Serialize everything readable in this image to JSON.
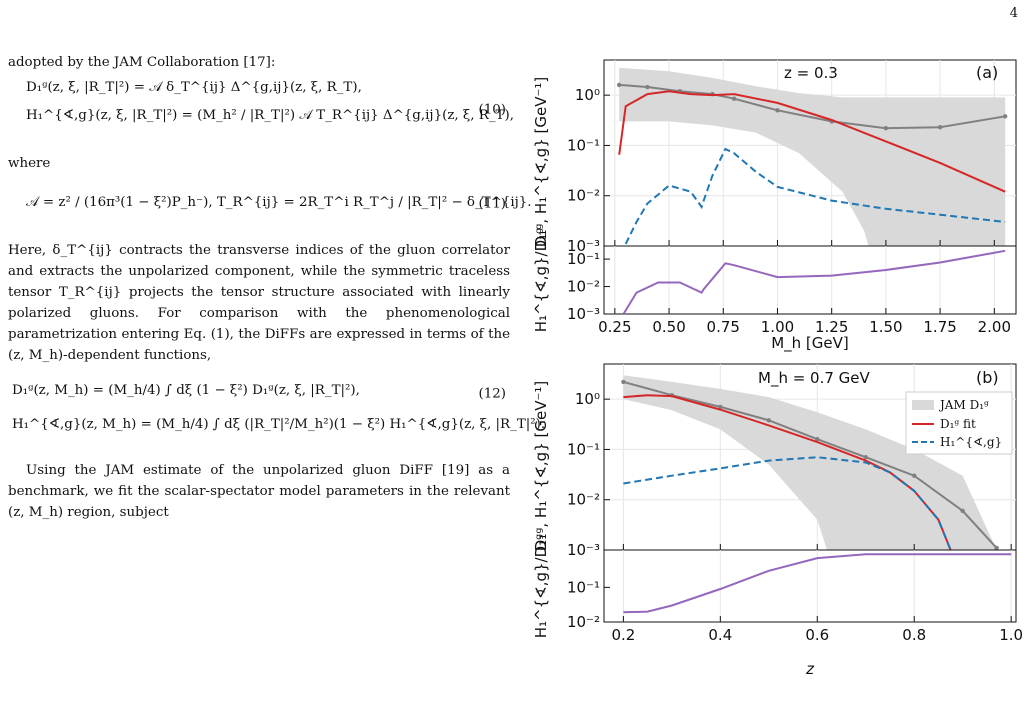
{
  "page_number": "4",
  "text": {
    "intro": "adopted by the JAM Collaboration [17]:",
    "eq10_line1": "D₁ᵍ(z, ξ, |R_T|²) = 𝒜 δ_T^{ij} Δ^{g,ij}(z, ξ, R_T),",
    "eq10_line2": "H₁^{∢,g}(z, ξ, |R_T|²) = (M_h² / |R_T|²) 𝒜 T_R^{ij} Δ^{g,ij}(z, ξ, R_T),",
    "eq10_num": "(10)",
    "where": "where",
    "eq11": "𝒜 = z² / (16π³(1 − ξ²)P_h⁻),     T_R^{ij} = 2R_T^i R_T^j / |R_T|² − δ_T^{ij}.",
    "eq11_num": "(11)",
    "para1": "Here, δ_T^{ij} contracts the transverse indices of the gluon correlator and extracts the unpolarized component, while the symmetric traceless tensor T_R^{ij} projects the tensor structure associated with linearly polarized gluons. For comparison with the phenomenological parametrization entering Eq. (1), the DiFFs are expressed in terms of the (z, M_h)-dependent functions,",
    "eq12_line1": "D₁ᵍ(z, M_h) = (M_h/4) ∫ dξ (1 − ξ²) D₁ᵍ(z, ξ, |R_T|²),",
    "eq12_num": "(12)",
    "eq12_line2": "H₁^{∢,g}(z, M_h) = (M_h/4) ∫ dξ (|R_T|²/M_h²)(1 − ξ²) H₁^{∢,g}(z, ξ, |R_T|²).",
    "para2": "Using the JAM estimate of the unpolarized gluon DiFF [19] as a benchmark, we fit the scalar-spectator model parameters in the relevant (z, M_h) region, subject"
  },
  "figure": {
    "colors": {
      "jam": "#d9d9d9",
      "fit": "#d62728",
      "h1": "#1f77b4",
      "ratio": "#9467bd",
      "jam_line": "#808080"
    },
    "panel_a": {
      "label": "(a)",
      "annotation": "z = 0.3",
      "xlabel": "M_h [GeV]",
      "ylabel": "D₁ᵍ, H₁^{∢,g} [GeV⁻¹]",
      "ratio_ylabel": "H₁^{∢,g}/D₁ᵍ",
      "xticks": [
        "0.25",
        "0.50",
        "0.75",
        "1.00",
        "1.25",
        "1.50",
        "1.75",
        "2.00"
      ],
      "yticks": [
        "10⁰",
        "10⁻¹",
        "10⁻²",
        "10⁻³"
      ],
      "ratio_yticks": [
        "10⁻¹",
        "10⁻²",
        "10⁻³"
      ]
    },
    "panel_b": {
      "label": "(b)",
      "annotation": "M_h = 0.7 GeV",
      "xlabel": "z",
      "ylabel": "D₁ᵍ, H₁^{∢,g} [GeV⁻¹]",
      "ratio_ylabel": "H₁^{∢,g}/D₁ᵍ",
      "xticks": [
        "0.2",
        "0.4",
        "0.6",
        "0.8",
        "1.0"
      ],
      "yticks": [
        "10⁰",
        "10⁻¹",
        "10⁻²",
        "10⁻³"
      ],
      "ratio_yticks": [
        "10⁻¹",
        "10⁻²"
      ],
      "legend": [
        "JAM D₁ᵍ",
        "D₁ᵍ fit",
        "H₁^{∢,g}"
      ]
    }
  },
  "chart_data": [
    {
      "type": "line",
      "title": "z = 0.3",
      "xlabel": "M_h [GeV]",
      "ylabel": "D₁ᵍ, H₁^{∢,g} [GeV⁻¹]",
      "xlim": [
        0.2,
        2.1
      ],
      "ylim": [
        0.001,
        5
      ],
      "yscale": "log",
      "series": [
        {
          "name": "JAM D₁ᵍ",
          "x": [
            0.27,
            0.4,
            0.55,
            0.7,
            0.8,
            1.0,
            1.25,
            1.5,
            1.75,
            2.05
          ],
          "y": [
            1.6,
            1.45,
            1.2,
            1.05,
            0.85,
            0.5,
            0.3,
            0.22,
            0.23,
            0.38
          ]
        },
        {
          "name": "D₁ᵍ fit",
          "x": [
            0.27,
            0.3,
            0.4,
            0.5,
            0.6,
            0.7,
            0.8,
            1.0,
            1.25,
            1.5,
            1.75,
            2.05
          ],
          "y": [
            0.065,
            0.6,
            1.05,
            1.2,
            1.05,
            1.0,
            1.05,
            0.7,
            0.32,
            0.12,
            0.045,
            0.012
          ]
        },
        {
          "name": "H₁^{∢,g}",
          "x": [
            0.3,
            0.35,
            0.4,
            0.5,
            0.6,
            0.65,
            0.66,
            0.7,
            0.76,
            0.8,
            0.9,
            1.0,
            1.25,
            1.5,
            1.75,
            2.05
          ],
          "y": [
            0.0011,
            0.003,
            0.007,
            0.016,
            0.012,
            0.006,
            0.008,
            0.025,
            0.085,
            0.07,
            0.03,
            0.015,
            0.008,
            0.0055,
            0.0042,
            0.003
          ]
        }
      ],
      "ratio": {
        "ylabel": "H₁^{∢,g}/D₁ᵍ",
        "ylim": [
          0.001,
          0.3
        ],
        "x": [
          0.29,
          0.35,
          0.45,
          0.55,
          0.65,
          0.66,
          0.76,
          0.8,
          1.0,
          1.25,
          1.5,
          1.75,
          2.05
        ],
        "y": [
          0.001,
          0.006,
          0.014,
          0.014,
          0.006,
          0.008,
          0.07,
          0.06,
          0.022,
          0.025,
          0.04,
          0.075,
          0.2
        ]
      }
    },
    {
      "type": "line",
      "title": "M_h = 0.7 GeV",
      "xlabel": "z",
      "ylabel": "D₁ᵍ, H₁^{∢,g} [GeV⁻¹]",
      "xlim": [
        0.16,
        1.01
      ],
      "ylim": [
        0.001,
        5
      ],
      "yscale": "log",
      "series": [
        {
          "name": "JAM D₁ᵍ",
          "x": [
            0.2,
            0.3,
            0.4,
            0.5,
            0.6,
            0.7,
            0.8,
            0.9,
            0.97
          ],
          "y": [
            2.2,
            1.2,
            0.7,
            0.38,
            0.16,
            0.07,
            0.03,
            0.006,
            0.0011
          ]
        },
        {
          "name": "D₁ᵍ fit",
          "x": [
            0.2,
            0.25,
            0.3,
            0.4,
            0.5,
            0.6,
            0.7,
            0.75,
            0.8,
            0.85,
            0.875
          ],
          "y": [
            1.1,
            1.2,
            1.15,
            0.62,
            0.3,
            0.14,
            0.06,
            0.035,
            0.015,
            0.004,
            0.001
          ]
        },
        {
          "name": "H₁^{∢,g}",
          "x": [
            0.2,
            0.3,
            0.4,
            0.5,
            0.6,
            0.7,
            0.75,
            0.8,
            0.85,
            0.875
          ],
          "y": [
            0.021,
            0.03,
            0.042,
            0.06,
            0.07,
            0.055,
            0.035,
            0.015,
            0.004,
            0.001
          ]
        }
      ],
      "ratio": {
        "ylabel": "H₁^{∢,g}/D₁ᵍ",
        "ylim": [
          0.01,
          1.2
        ],
        "x": [
          0.2,
          0.25,
          0.3,
          0.4,
          0.5,
          0.6,
          0.7,
          0.8,
          0.9,
          1.0
        ],
        "y": [
          0.019,
          0.02,
          0.03,
          0.09,
          0.3,
          0.7,
          0.9,
          0.9,
          0.9,
          0.9
        ]
      }
    }
  ]
}
